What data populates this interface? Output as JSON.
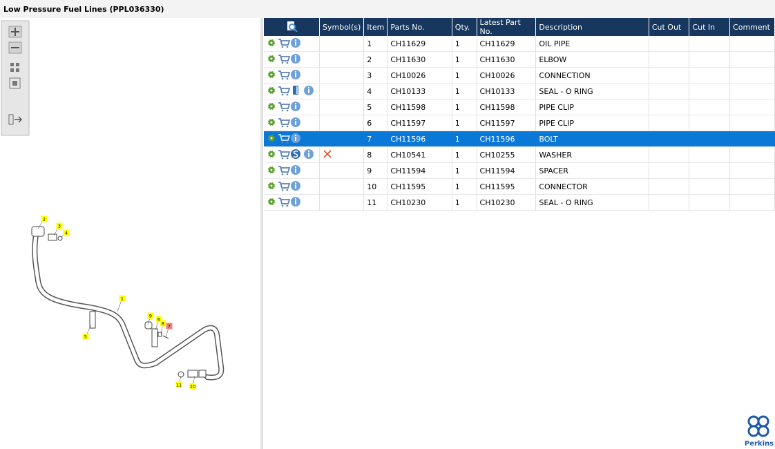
{
  "header": {
    "title": "Low Pressure Fuel Lines (PPL036330)"
  },
  "table": {
    "columns": [
      "Symbol(s)",
      "Item",
      "Parts No.",
      "Qty.",
      "Latest Part No.",
      "Description",
      "Cut Out",
      "Cut In",
      "Comment"
    ],
    "rows": [
      [
        "1",
        "CH11629",
        "1",
        "CH11629",
        "OIL PIPE"
      ],
      [
        "2",
        "CH11630",
        "1",
        "CH11630",
        "ELBOW"
      ],
      [
        "3",
        "CH10026",
        "1",
        "CH10026",
        "CONNECTION"
      ],
      [
        "4",
        "CH10133",
        "1",
        "CH10133",
        "SEAL - O RING"
      ],
      [
        "5",
        "CH11598",
        "1",
        "CH11598",
        "PIPE CLIP"
      ],
      [
        "6",
        "CH11597",
        "1",
        "CH11597",
        "PIPE CLIP"
      ],
      [
        "7",
        "CH11596",
        "1",
        "CH11596",
        "BOLT"
      ],
      [
        "8",
        "CH10541",
        "1",
        "CH10255",
        "WASHER"
      ],
      [
        "9",
        "CH11594",
        "1",
        "CH11594",
        "SPACER"
      ],
      [
        "10",
        "CH11595",
        "1",
        "CH11595",
        "CONNECTOR"
      ],
      [
        "11",
        "CH10230",
        "1",
        "CH10230",
        "SEAL - O RING"
      ]
    ]
  },
  "diagram": {
    "callouts": [
      "1",
      "2",
      "3",
      "4",
      "5",
      "6",
      "7",
      "8",
      "9",
      "10",
      "11"
    ]
  },
  "logo": {
    "text": "Perkins"
  }
}
